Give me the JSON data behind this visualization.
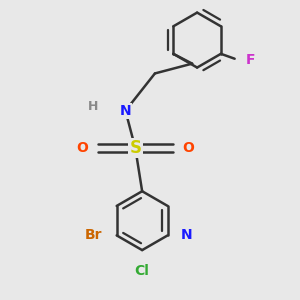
{
  "bg_color": "#e8e8e8",
  "bond_color": "#333333",
  "bond_width": 1.8,
  "colors": {
    "N": "#1a1aff",
    "O": "#ff4400",
    "S": "#cccc00",
    "Br": "#cc6600",
    "Cl": "#33aa33",
    "F": "#cc33cc",
    "H": "#888888",
    "C": "#333333"
  },
  "font_size": 10,
  "fig_size": [
    3.0,
    3.0
  ],
  "dpi": 100,
  "xlim": [
    0.0,
    3.0
  ],
  "ylim": [
    0.0,
    3.0
  ]
}
